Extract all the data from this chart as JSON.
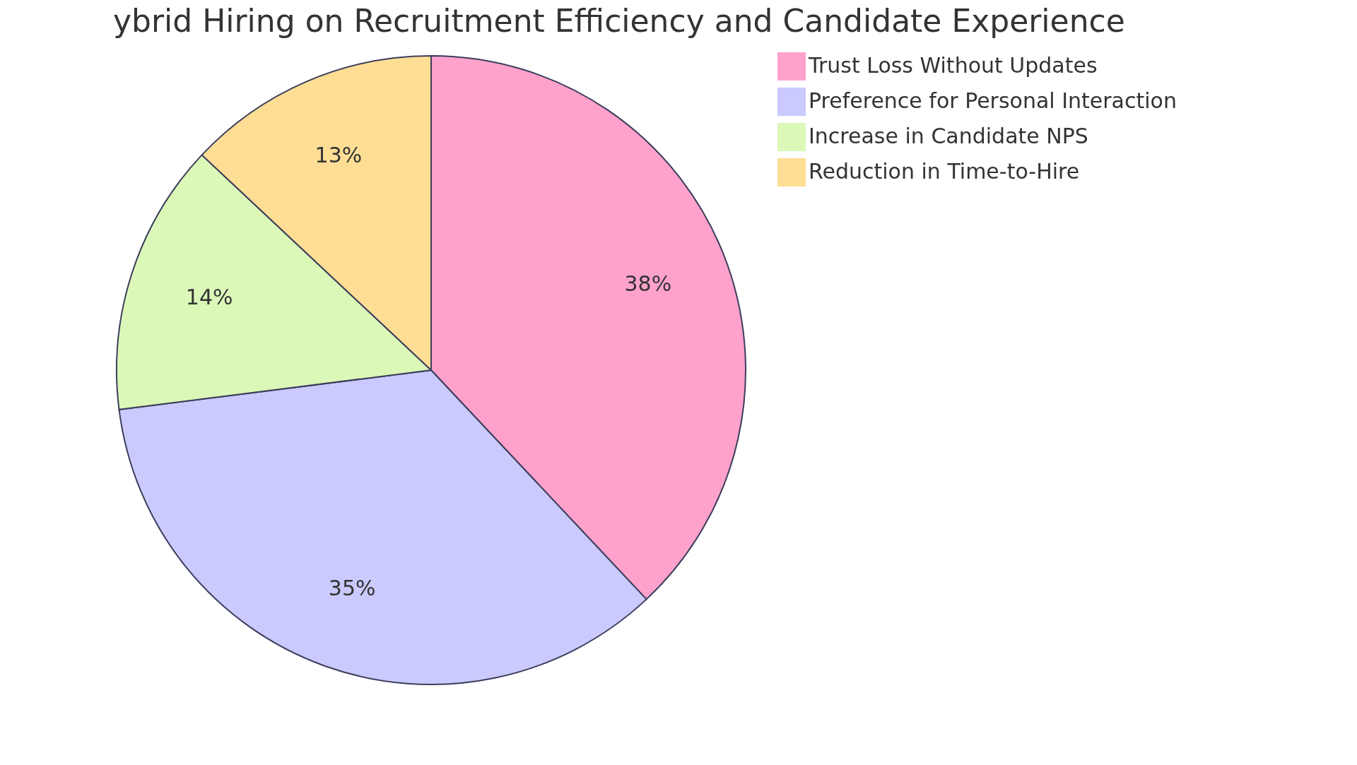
{
  "chart_data": {
    "type": "pie",
    "title": "ybrid Hiring on Recruitment Efficiency and Candidate Experience",
    "categories": [
      "Trust Loss Without Updates",
      "Preference for Personal Interaction",
      "Increase in Candidate NPS",
      "Reduction in Time-to-Hire"
    ],
    "values": [
      38,
      35,
      14,
      13
    ],
    "value_labels": [
      "38%",
      "35%",
      "14%",
      "13%"
    ],
    "colors": [
      "#fea2cc",
      "#cacafe",
      "#dbf8b8",
      "#fede94"
    ],
    "legend": "right"
  }
}
